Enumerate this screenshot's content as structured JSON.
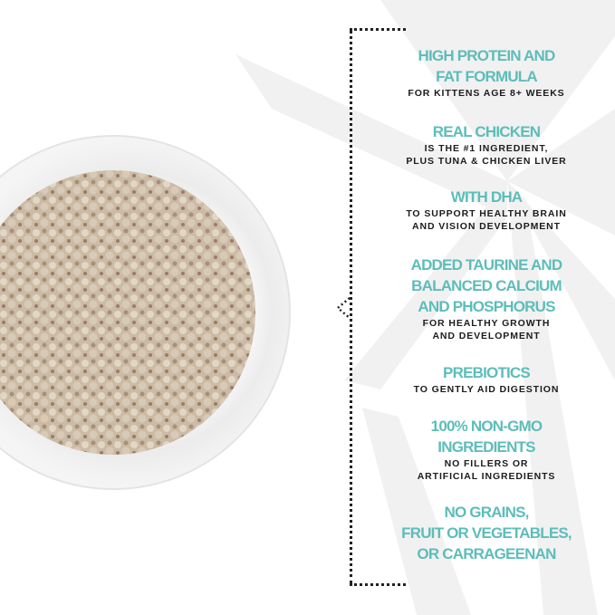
{
  "colors": {
    "accent": "#5dbdb9",
    "text": "#1c1c1c",
    "dots": "#222222"
  },
  "features": [
    {
      "head": [
        "HIGH PROTEIN AND",
        "FAT FORMULA"
      ],
      "sub": [
        "FOR KITTENS AGE 8+ WEEKS"
      ]
    },
    {
      "head": [
        "REAL CHICKEN"
      ],
      "sub": [
        "IS THE #1 INGREDIENT,",
        "PLUS TUNA & CHICKEN LIVER"
      ]
    },
    {
      "head": [
        "WITH DHA"
      ],
      "sub": [
        "TO SUPPORT HEALTHY BRAIN",
        "AND VISION DEVELOPMENT"
      ]
    },
    {
      "head": [
        "ADDED TAURINE AND",
        "BALANCED CALCIUM",
        "AND PHOSPHORUS"
      ],
      "sub": [
        "FOR HEALTHY GROWTH",
        "AND DEVELOPMENT"
      ]
    },
    {
      "head": [
        "PREBIOTICS"
      ],
      "sub": [
        "TO GENTLY AID DIGESTION"
      ]
    },
    {
      "head": [
        "100% NON-GMO",
        "INGREDIENTS"
      ],
      "sub": [
        "NO FILLERS OR",
        "ARTIFICIAL INGREDIENTS"
      ]
    },
    {
      "head": [
        "NO GRAINS,",
        "FRUIT OR VEGETABLES,",
        "OR CARRAGEENAN"
      ],
      "sub": []
    }
  ]
}
